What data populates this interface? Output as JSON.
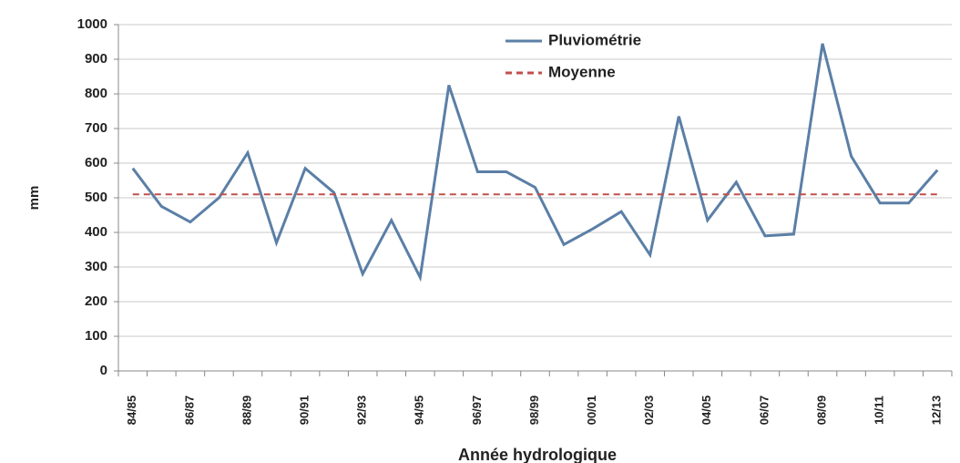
{
  "chart_data": {
    "type": "line",
    "y_label": "mm",
    "x_label": "Année hydrologique",
    "categories": [
      "84/85",
      null,
      "86/87",
      null,
      "88/89",
      null,
      "90/91",
      null,
      "92/93",
      null,
      "94/95",
      null,
      "96/97",
      null,
      "98/99",
      null,
      "00/01",
      null,
      "02/03",
      null,
      "04/05",
      null,
      "06/07",
      null,
      "08/09",
      null,
      "10/11",
      null,
      "12/13"
    ],
    "series": [
      {
        "name": "Pluviométrie",
        "color": "#5b7fa6",
        "values": [
          585,
          475,
          430,
          500,
          630,
          370,
          585,
          515,
          280,
          435,
          270,
          825,
          575,
          575,
          530,
          365,
          410,
          460,
          335,
          735,
          435,
          545,
          390,
          395,
          945,
          620,
          485,
          485,
          580
        ]
      },
      {
        "name": "Moyenne",
        "color": "#c0504d",
        "value": 510,
        "dashed": true
      }
    ],
    "ylim": [
      0,
      1000
    ],
    "yticks": [
      0,
      100,
      200,
      300,
      400,
      500,
      600,
      700,
      800,
      900,
      1000
    ],
    "grid": true,
    "legend": "top"
  }
}
